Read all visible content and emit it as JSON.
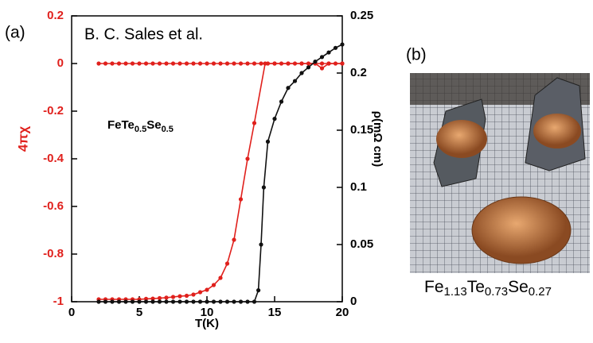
{
  "chart_data": {
    "type": "line",
    "panel_label": "(a)",
    "title": "B. C. Sales et al.",
    "annotation_parts": [
      "FeTe",
      "0.5",
      "Se",
      "0.5"
    ],
    "xlabel": "T(K)",
    "ylabel": "4πχ",
    "y2label": "ρ(mΩ cm)",
    "xlim": [
      0,
      20
    ],
    "xticks": [
      0,
      5,
      10,
      15,
      20
    ],
    "ylim": [
      -1,
      0.2
    ],
    "yticks": [
      0.2,
      0,
      -0.2,
      -0.4,
      -0.6,
      -0.8,
      -1
    ],
    "y2lim": [
      0,
      0.25
    ],
    "y2ticks": [
      0,
      0.05,
      0.1,
      0.15,
      0.2,
      0.25
    ],
    "series": [
      {
        "color": "#e0201c",
        "x": [
          2,
          2.5,
          3,
          3.5,
          4,
          4.5,
          5,
          5.5,
          6,
          6.5,
          7,
          7.5,
          8,
          8.5,
          9,
          9.5,
          10,
          10.5,
          11,
          11.5,
          12,
          12.5,
          13,
          13.5,
          14,
          14.5,
          15,
          15.5,
          16,
          16.5,
          17,
          17.5,
          18,
          18.5,
          19,
          19.5,
          20
        ],
        "values": [
          0,
          0,
          0,
          0,
          0,
          0,
          0,
          0,
          0,
          0,
          0,
          0,
          0,
          0,
          0,
          0,
          0,
          0,
          0,
          0,
          0,
          0,
          0,
          0,
          0,
          0,
          0,
          0,
          0,
          0,
          0,
          0,
          0,
          0,
          0,
          0,
          0
        ]
      },
      {
        "color": "#e0201c",
        "x": [
          2,
          2.5,
          3,
          3.5,
          4,
          4.5,
          5,
          5.5,
          6,
          6.5,
          7,
          7.5,
          8,
          8.5,
          9,
          9.5,
          10,
          10.5,
          11,
          11.5,
          12,
          12.5,
          13,
          13.5,
          14.3,
          15,
          16,
          17,
          18,
          18.5,
          19,
          20
        ],
        "values": [
          -0.99,
          -0.99,
          -0.99,
          -0.99,
          -0.99,
          -0.99,
          -0.99,
          -0.988,
          -0.987,
          -0.985,
          -0.983,
          -0.98,
          -0.977,
          -0.975,
          -0.97,
          -0.96,
          -0.95,
          -0.93,
          -0.9,
          -0.84,
          -0.74,
          -0.57,
          -0.4,
          -0.25,
          0,
          0,
          0,
          0,
          0,
          -0.02,
          0,
          0
        ]
      },
      {
        "color": "#111111",
        "axis": "y2",
        "x": [
          2,
          2.5,
          3,
          3.5,
          4,
          4.5,
          5,
          5.5,
          6,
          6.5,
          7,
          7.5,
          8,
          8.5,
          9,
          9.5,
          10,
          10.5,
          11,
          11.5,
          12,
          12.5,
          13,
          13.5,
          13.8,
          14,
          14.2,
          14.5,
          15,
          15.5,
          16,
          16.5,
          17,
          17.5,
          18,
          18.5,
          19,
          19.5,
          20
        ],
        "values": [
          0,
          0,
          0,
          0,
          0,
          0,
          0,
          0,
          0,
          0,
          0,
          0,
          0,
          0,
          0,
          0,
          0,
          0,
          0,
          0,
          0,
          0,
          0,
          0,
          0.01,
          0.05,
          0.1,
          0.14,
          0.16,
          0.175,
          0.187,
          0.193,
          0.2,
          0.205,
          0.21,
          0.214,
          0.218,
          0.222,
          0.225
        ]
      }
    ]
  },
  "photo": {
    "panel_label": "(b)",
    "caption_parts": [
      "Fe",
      "1.13",
      "Te",
      "0.73",
      "Se",
      "0.27"
    ]
  }
}
